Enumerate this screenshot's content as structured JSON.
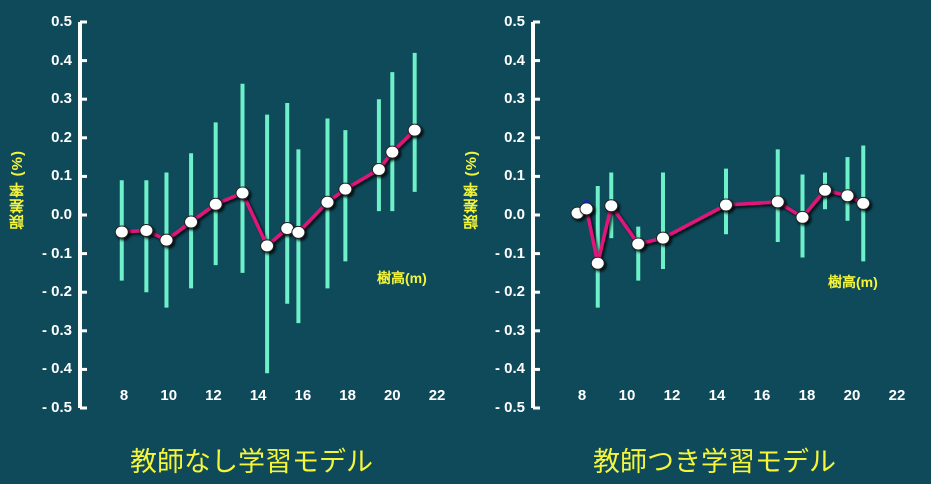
{
  "colors": {
    "background": "#0e4a5a",
    "axis": "#ffffff",
    "error_bar": "#6ef0c8",
    "line": "#e0187a",
    "marker_fill": "#ffffff",
    "label_yellow": "#f5f53a"
  },
  "chart_data": [
    {
      "type": "line",
      "title": "教師なし学習モデル",
      "xlabel": "樹高(m)",
      "ylabel": "誤差率 (%)",
      "xlim": [
        6,
        22
      ],
      "ylim": [
        -0.5,
        0.5
      ],
      "xticks": [
        "8",
        "10",
        "12",
        "14",
        "16",
        "18",
        "20",
        "22"
      ],
      "yticks": [
        "0.5",
        "0.4",
        "0.3",
        "0.2",
        "0.1",
        "0.0",
        "- 0.1",
        "- 0.2",
        "- 0.3",
        "- 0.4",
        "- 0.5"
      ],
      "grid": false,
      "legend": null,
      "series": [
        {
          "name": "誤差率",
          "x": [
            7.9,
            9.0,
            9.9,
            11.0,
            12.1,
            13.3,
            14.4,
            15.3,
            15.8,
            17.1,
            17.9,
            19.4,
            20.0,
            21.0
          ],
          "y": [
            -0.044,
            -0.04,
            -0.065,
            -0.018,
            0.028,
            0.057,
            -0.08,
            -0.035,
            -0.045,
            0.033,
            0.067,
            0.118,
            0.163,
            0.22
          ],
          "err_upper": [
            0.09,
            0.09,
            0.11,
            0.16,
            0.24,
            0.34,
            0.26,
            0.29,
            0.17,
            0.25,
            0.22,
            0.3,
            0.37,
            0.42
          ],
          "err_lower": [
            -0.17,
            -0.2,
            -0.24,
            -0.19,
            -0.13,
            -0.15,
            -0.41,
            -0.23,
            -0.28,
            -0.19,
            -0.12,
            0.01,
            0.01,
            0.06
          ]
        }
      ]
    },
    {
      "type": "line",
      "title": "教師つき学習モデル",
      "xlabel": "樹高(m)",
      "ylabel": "誤差率 (%)",
      "xlim": [
        6,
        22
      ],
      "ylim": [
        -0.5,
        0.5
      ],
      "xticks": [
        "8",
        "10",
        "12",
        "14",
        "16",
        "18",
        "20",
        "22"
      ],
      "yticks": [
        "0.5",
        "0.4",
        "0.3",
        "0.2",
        "0.1",
        "0.0",
        "- 0.1",
        "- 0.2",
        "- 0.3",
        "- 0.4",
        "- 0.5"
      ],
      "grid": false,
      "legend": null,
      "series": [
        {
          "name": "誤差率",
          "x": [
            7.8,
            8.2,
            8.7,
            9.3,
            10.5,
            11.6,
            14.4,
            16.7,
            17.8,
            18.8,
            19.8,
            20.5
          ],
          "y": [
            0.005,
            0.016,
            -0.125,
            0.024,
            -0.075,
            -0.06,
            0.026,
            0.034,
            -0.006,
            0.064,
            0.05,
            0.03
          ],
          "err_upper": [
            null,
            null,
            0.075,
            0.11,
            -0.03,
            0.11,
            0.12,
            0.17,
            0.105,
            0.11,
            0.15,
            0.18
          ],
          "err_lower": [
            null,
            null,
            -0.24,
            -0.06,
            -0.17,
            -0.14,
            -0.05,
            -0.07,
            -0.11,
            0.015,
            -0.015,
            -0.12
          ]
        }
      ]
    }
  ],
  "panels": {
    "left": {
      "title": "教師なし学習モデル",
      "ylabel": "誤差率 (%)",
      "xunit": "樹高(m)"
    },
    "right": {
      "title": "教師つき学習モデル",
      "ylabel": "誤差率 (%)",
      "xunit": "樹高(m)"
    }
  }
}
